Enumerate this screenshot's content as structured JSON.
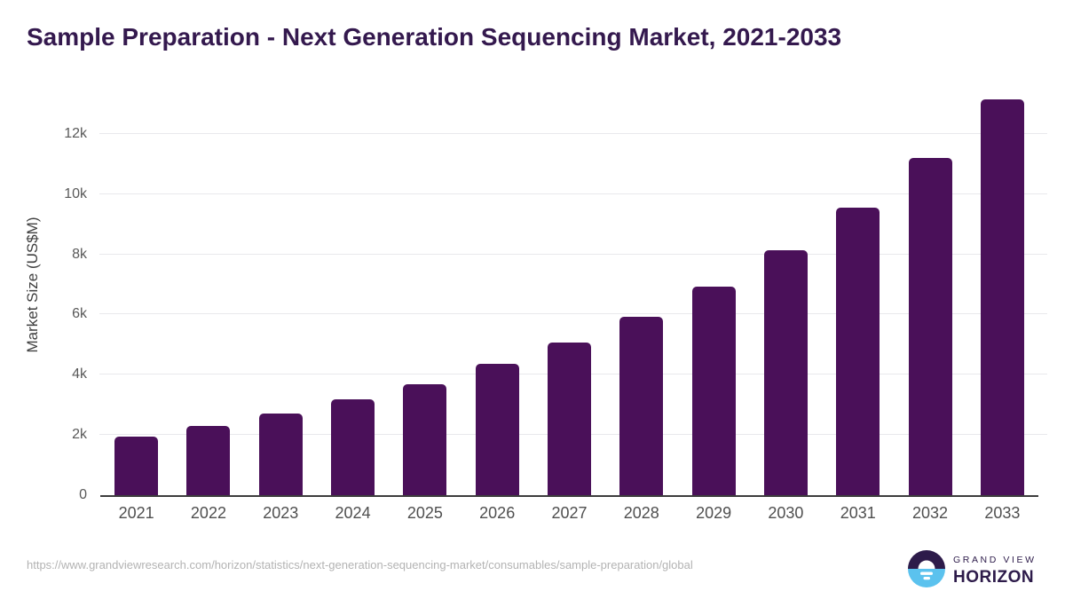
{
  "chart_data": {
    "type": "bar",
    "title": "Sample Preparation - Next Generation Sequencing Market, 2021-2033",
    "xlabel": "",
    "ylabel": "Market Size (US$M)",
    "categories": [
      "2021",
      "2022",
      "2023",
      "2024",
      "2025",
      "2026",
      "2027",
      "2028",
      "2029",
      "2030",
      "2031",
      "2032",
      "2033"
    ],
    "values": [
      1960,
      2310,
      2700,
      3170,
      3680,
      4350,
      5080,
      5920,
      6940,
      8150,
      9540,
      11210,
      13160
    ],
    "ylim": [
      0,
      13500
    ],
    "yticks": [
      {
        "value": 0,
        "label": "0"
      },
      {
        "value": 2000,
        "label": "2k"
      },
      {
        "value": 4000,
        "label": "4k"
      },
      {
        "value": 6000,
        "label": "6k"
      },
      {
        "value": 8000,
        "label": "8k"
      },
      {
        "value": 10000,
        "label": "10k"
      },
      {
        "value": 12000,
        "label": "12k"
      }
    ],
    "grid": "horizontal",
    "legend": "none"
  },
  "colors": {
    "bar": "#4a1059",
    "title_text": "#34194e",
    "axis_line": "#3d3d3d",
    "gridline": "#e9e9ec",
    "tick_text": "#595959",
    "footer_text": "#b3b3b3",
    "logo_purple": "#2d1b4a",
    "logo_blue": "#5bc2ee"
  },
  "footer": {
    "source_url": "https://www.grandviewresearch.com/horizon/statistics/next-generation-sequencing-market/consumables/sample-preparation/global",
    "logo": {
      "line1": "GRAND VIEW",
      "line2": "HORIZON"
    }
  }
}
